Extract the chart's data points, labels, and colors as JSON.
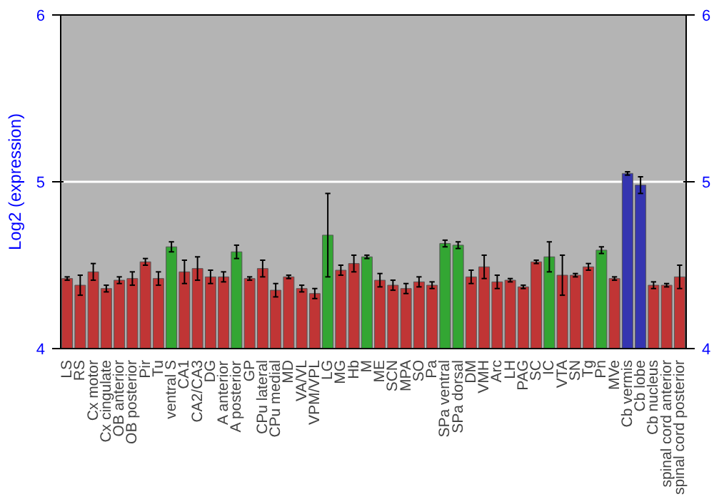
{
  "chart_data": {
    "type": "bar",
    "ylabel": "Log2 (expression)",
    "categories": [
      "LS",
      "RS",
      "Cx motor",
      "Cx cingulate",
      "OB anterior",
      "OB posterior",
      "Pir",
      "Tu",
      "ventral S",
      "CA1",
      "CA2/CA3",
      "DG",
      "A anterior",
      "A posterior",
      "GP",
      "CPu lateral",
      "CPu medial",
      "MD",
      "VA/VL",
      "VPM/VPL",
      "LG",
      "MG",
      "Hb",
      "M",
      "ME",
      "SCN",
      "MPA",
      "SO",
      "Pa",
      "SPa ventral",
      "SPa dorsal",
      "DM",
      "VMH",
      "Arc",
      "LH",
      "PAG",
      "SC",
      "IC",
      "VTA",
      "SN",
      "Tg",
      "Pn",
      "MVe",
      "Cb vermis",
      "Cb lobe",
      "Cb nucleus",
      "spinal cord anterior",
      "spinal cord posterior"
    ],
    "values": [
      4.42,
      4.38,
      4.46,
      4.36,
      4.41,
      4.42,
      4.52,
      4.42,
      4.61,
      4.46,
      4.48,
      4.43,
      4.43,
      4.58,
      4.42,
      4.48,
      4.35,
      4.43,
      4.36,
      4.33,
      4.68,
      4.47,
      4.51,
      4.55,
      4.41,
      4.38,
      4.36,
      4.4,
      4.38,
      4.63,
      4.62,
      4.43,
      4.49,
      4.4,
      4.41,
      4.37,
      4.52,
      4.55,
      4.44,
      4.44,
      4.49,
      4.59,
      4.42,
      5.05,
      4.98,
      4.38,
      4.38,
      4.43
    ],
    "errors": [
      0.01,
      0.06,
      0.05,
      0.02,
      0.02,
      0.04,
      0.02,
      0.04,
      0.03,
      0.07,
      0.07,
      0.04,
      0.03,
      0.04,
      0.01,
      0.05,
      0.04,
      0.01,
      0.02,
      0.03,
      0.25,
      0.03,
      0.05,
      0.01,
      0.04,
      0.03,
      0.03,
      0.03,
      0.02,
      0.02,
      0.02,
      0.04,
      0.07,
      0.04,
      0.01,
      0.01,
      0.01,
      0.09,
      0.12,
      0.01,
      0.02,
      0.02,
      0.01,
      0.01,
      0.05,
      0.02,
      0.01,
      0.07
    ],
    "colors": [
      "#c03535",
      "#c03535",
      "#c03535",
      "#c03535",
      "#c03535",
      "#c03535",
      "#c03535",
      "#c03535",
      "#33a633",
      "#c03535",
      "#c03535",
      "#c03535",
      "#c03535",
      "#33a633",
      "#c03535",
      "#c03535",
      "#c03535",
      "#c03535",
      "#c03535",
      "#c03535",
      "#33a633",
      "#c03535",
      "#c03535",
      "#33a633",
      "#c03535",
      "#c03535",
      "#c03535",
      "#c03535",
      "#c03535",
      "#33a633",
      "#33a633",
      "#c03535",
      "#c03535",
      "#c03535",
      "#c03535",
      "#c03535",
      "#c03535",
      "#33a633",
      "#c03535",
      "#c03535",
      "#c03535",
      "#33a633",
      "#c03535",
      "#3535b0",
      "#3535b0",
      "#c03535",
      "#c03535",
      "#c03535"
    ],
    "ylim": [
      4,
      6
    ],
    "yticks": [
      4,
      5,
      6
    ],
    "y2lim": [
      4,
      6
    ],
    "y2ticks": [
      4,
      5,
      6
    ],
    "grid": "y"
  }
}
